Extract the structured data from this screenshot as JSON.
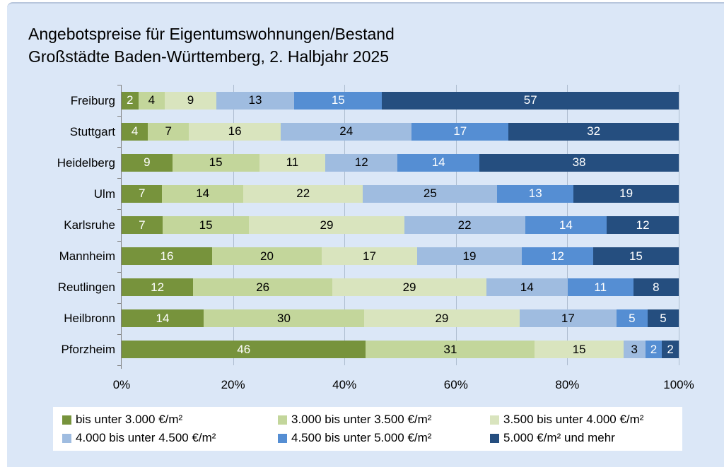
{
  "title": {
    "line1": "Angebotspreise für Eigentumswohnungen/Bestand",
    "line2": "Großstädte Baden-Württemberg, 2. Halbjahr 2025"
  },
  "colors": {
    "panel_background": "#dbe7f7",
    "gridline": "#aebdd0",
    "axis": "#808080",
    "legend_background": "#ffffff"
  },
  "chart_data": {
    "type": "bar",
    "orientation": "horizontal-stacked",
    "categories": [
      "Freiburg",
      "Stuttgart",
      "Heidelberg",
      "Ulm",
      "Karlsruhe",
      "Mannheim",
      "Reutlingen",
      "Heilbronn",
      "Pforzheim"
    ],
    "series": [
      {
        "name": "bis unter 3.000  €/m²",
        "color": "#77933C",
        "label_color": "#FFFFFF",
        "values": [
          2,
          4,
          9,
          7,
          7,
          16,
          12,
          14,
          46
        ]
      },
      {
        "name": "3.000 bis unter 3.500 €/m²",
        "color": "#C3D69B",
        "label_color": "#000000",
        "values": [
          4,
          7,
          15,
          14,
          15,
          20,
          26,
          30,
          31
        ]
      },
      {
        "name": "3.500 bis unter 4.000 €/m²",
        "color": "#D9E4BE",
        "label_color": "#000000",
        "values": [
          9,
          16,
          11,
          22,
          29,
          17,
          29,
          29,
          15
        ]
      },
      {
        "name": "4.000 bis unter 4.500 €/m²",
        "color": "#9FBCE0",
        "label_color": "#000000",
        "values": [
          13,
          24,
          12,
          25,
          22,
          19,
          14,
          17,
          3
        ]
      },
      {
        "name": "4.500 bis unter 5.000 €/m²",
        "color": "#558ED3",
        "label_color": "#FFFFFF",
        "values": [
          15,
          17,
          14,
          13,
          14,
          12,
          11,
          5,
          2
        ]
      },
      {
        "name": "5.000 €/m² und mehr",
        "color": "#254E7F",
        "label_color": "#FFFFFF",
        "values": [
          57,
          32,
          38,
          19,
          12,
          15,
          8,
          5,
          2
        ]
      }
    ],
    "x_ticks": [
      "0%",
      "20%",
      "40%",
      "60%",
      "80%",
      "100%"
    ],
    "xlim": [
      0,
      100
    ],
    "xlabel": "",
    "ylabel": "",
    "grid": "vertical",
    "legend_position": "bottom",
    "value_labels": "inside-center"
  }
}
